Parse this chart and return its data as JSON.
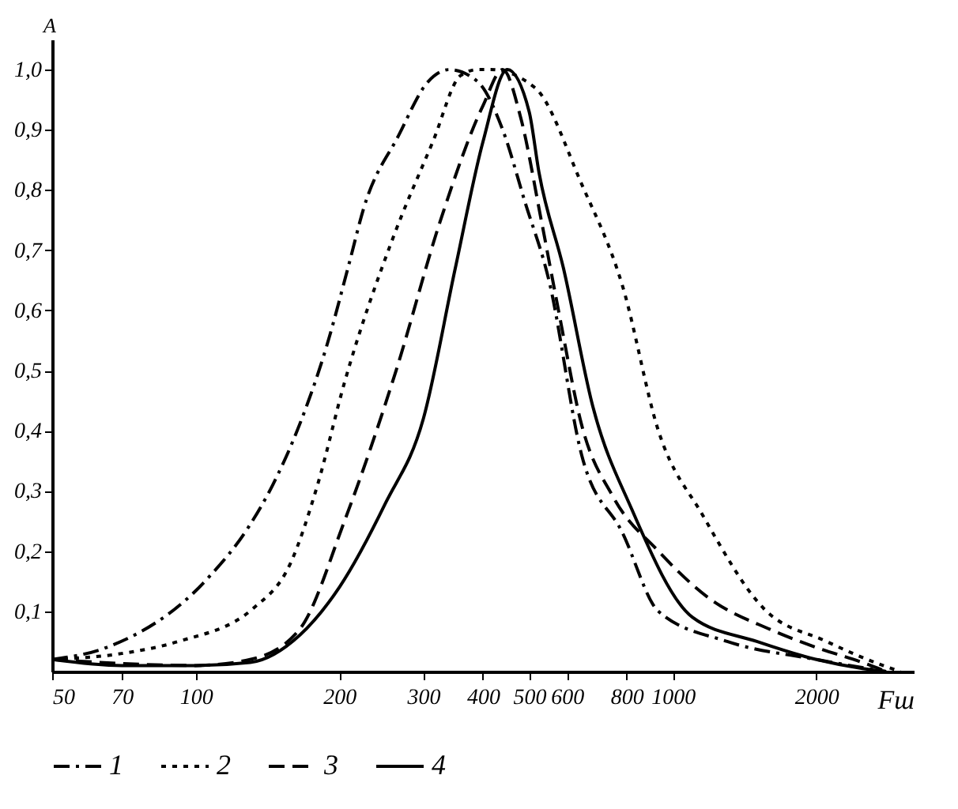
{
  "chart_data": {
    "type": "line",
    "xlabel": "Fш",
    "ylabel": "A",
    "log": "x",
    "legend": "bottom",
    "grid": false,
    "marker": "none",
    "xlim": [
      50,
      3200
    ],
    "xticks": [
      50,
      70,
      100,
      200,
      300,
      400,
      500,
      600,
      800,
      1000,
      2000
    ],
    "ylim": [
      0,
      1.05
    ],
    "yticks": [
      {
        "value": 0.1,
        "label": "0,1"
      },
      {
        "value": 0.2,
        "label": "0,2"
      },
      {
        "value": 0.3,
        "label": "0,3"
      },
      {
        "value": 0.4,
        "label": "0,4"
      },
      {
        "value": 0.5,
        "label": "0,5"
      },
      {
        "value": 0.6,
        "label": "0,6"
      },
      {
        "value": 0.7,
        "label": "0,7"
      },
      {
        "value": 0.8,
        "label": "0,8"
      },
      {
        "value": 0.9,
        "label": "0,9"
      },
      {
        "value": 1.0,
        "label": "1,0"
      }
    ],
    "series": [
      {
        "name": "1",
        "color": "#000000",
        "line_style": "dashdot",
        "x": [
          50,
          65,
          106,
          129,
          145,
          165,
          188,
          210,
          225,
          266,
          307,
          340,
          390,
          440,
          490,
          550,
          644,
          785,
          933,
          1300,
          2000,
          2800
        ],
        "values": [
          0.02,
          0.04,
          0.155,
          0.24,
          0.31,
          0.41,
          0.54,
          0.68,
          0.77,
          0.89,
          0.98,
          1.0,
          0.98,
          0.9,
          0.78,
          0.65,
          0.36,
          0.23,
          0.1,
          0.05,
          0.02,
          0
        ]
      },
      {
        "name": "2",
        "color": "#000000",
        "line_style": "dotted",
        "x": [
          50,
          70,
          92,
          132,
          158,
          180,
          205,
          259,
          314,
          359,
          390,
          415,
          514,
          644,
          785,
          933,
          1155,
          1550,
          2100,
          2760,
          3000
        ],
        "values": [
          0.02,
          0.03,
          0.05,
          0.105,
          0.18,
          0.31,
          0.48,
          0.72,
          0.88,
          0.99,
          1.0,
          1.0,
          0.97,
          0.81,
          0.64,
          0.4,
          0.26,
          0.105,
          0.05,
          0.01,
          0
        ]
      },
      {
        "name": "3",
        "color": "#000000",
        "line_style": "dashed",
        "x": [
          50,
          100,
          130,
          165,
          205,
          263,
          326,
          400,
          440,
          480,
          530,
          576,
          644,
          750,
          933,
          1200,
          1600,
          2000,
          2500,
          2800
        ],
        "values": [
          0.02,
          0.01,
          0.02,
          0.07,
          0.25,
          0.5,
          0.75,
          0.94,
          1.0,
          0.92,
          0.75,
          0.6,
          0.41,
          0.29,
          0.2,
          0.12,
          0.07,
          0.04,
          0.015,
          0
        ]
      },
      {
        "name": "4",
        "color": "#000000",
        "line_style": "solid",
        "x": [
          50,
          70,
          100,
          130,
          165,
          200,
          250,
          300,
          350,
          400,
          450,
          500,
          524,
          590,
          680,
          820,
          1100,
          1500,
          2000,
          2500,
          2800
        ],
        "values": [
          0.02,
          0.01,
          0.01,
          0.015,
          0.06,
          0.14,
          0.28,
          0.42,
          0.67,
          0.88,
          1.0,
          0.93,
          0.83,
          0.67,
          0.44,
          0.27,
          0.09,
          0.05,
          0.02,
          0.005,
          0
        ]
      }
    ]
  }
}
